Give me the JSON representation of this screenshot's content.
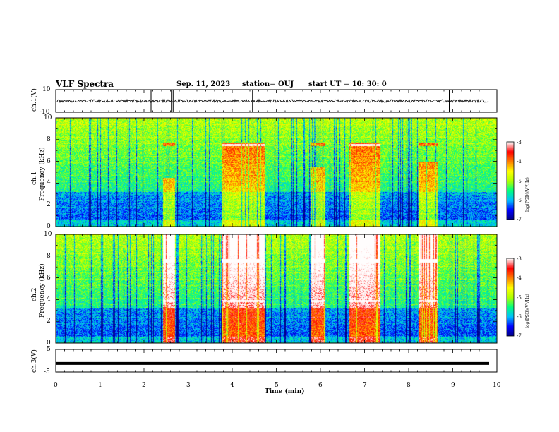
{
  "header": {
    "title": "VLF Spectra",
    "date": "Sep. 11, 2023",
    "station": "station= OUJ",
    "start": "start  UT  =   10: 30: 0"
  },
  "chart_data": [
    {
      "type": "line",
      "panel": "ch1-waveform",
      "ylabel": "ch.1(V)",
      "ylim": [
        -10,
        10
      ],
      "ytick_labels": [
        "10",
        "-10"
      ],
      "xlim": [
        0,
        10
      ],
      "baseline": 0,
      "spikes_x": [
        2.16,
        2.62,
        2.66,
        4.46,
        8.92
      ]
    },
    {
      "type": "heatmap",
      "panel": "ch1-spectrogram",
      "ylabel_line1": "ch.1",
      "ylabel_line2": "Frequency (kHz)",
      "ylim": [
        0,
        10
      ],
      "ytick_labels": [
        "0",
        "2",
        "4",
        "6",
        "8",
        "10"
      ],
      "xlim": [
        0,
        10
      ],
      "intense_bursts": [
        {
          "x0": 2.42,
          "x1": 2.7,
          "fmax": 4.5
        },
        {
          "x0": 3.75,
          "x1": 4.72,
          "fmax": 7.6
        },
        {
          "x0": 5.78,
          "x1": 6.1,
          "fmax": 5.5
        },
        {
          "x0": 6.65,
          "x1": 7.35,
          "fmax": 7.6
        },
        {
          "x0": 8.22,
          "x1": 8.65,
          "fmax": 6.0
        }
      ],
      "colorbar": {
        "label": "log(PSD)(V²/Hz)",
        "range": [
          -7,
          -3
        ],
        "tick_labels": [
          "-3",
          "-4",
          "-5",
          "-6",
          "-7"
        ]
      }
    },
    {
      "type": "heatmap",
      "panel": "ch2-spectrogram",
      "ylabel_line1": "ch.2",
      "ylabel_line2": "Frequency (kHz)",
      "ylim": [
        0,
        10
      ],
      "ytick_labels": [
        "0",
        "2",
        "4",
        "6",
        "8",
        "10"
      ],
      "xlim": [
        0,
        10
      ],
      "intense_bursts": [
        {
          "x0": 2.42,
          "x1": 2.7,
          "fmax": 10
        },
        {
          "x0": 3.75,
          "x1": 4.72,
          "fmax": 10
        },
        {
          "x0": 5.78,
          "x1": 6.1,
          "fmax": 10
        },
        {
          "x0": 6.65,
          "x1": 7.35,
          "fmax": 10
        },
        {
          "x0": 8.22,
          "x1": 8.65,
          "fmax": 10
        }
      ],
      "colorbar": {
        "label": "log(PSD)(V²/Hz)",
        "range": [
          -7,
          -3
        ],
        "tick_labels": [
          "-3",
          "-4",
          "-5",
          "-6",
          "-7"
        ]
      }
    },
    {
      "type": "line",
      "panel": "ch3-waveform",
      "ylabel": "ch.3(V)",
      "ylim": [
        -5,
        5
      ],
      "ytick_labels": [
        "5",
        "-5"
      ],
      "xlim": [
        0,
        10
      ],
      "baseline": -1.2
    }
  ],
  "xaxis": {
    "label": "Time (min)",
    "tick_labels": [
      "0",
      "1",
      "2",
      "3",
      "4",
      "5",
      "6",
      "7",
      "8",
      "9",
      "10"
    ]
  },
  "colors": {
    "ramp": [
      "#000080",
      "#0000ff",
      "#00bfff",
      "#00ff80",
      "#b0ff00",
      "#ffff00",
      "#ff8000",
      "#ff0000",
      "#ffffff"
    ]
  }
}
